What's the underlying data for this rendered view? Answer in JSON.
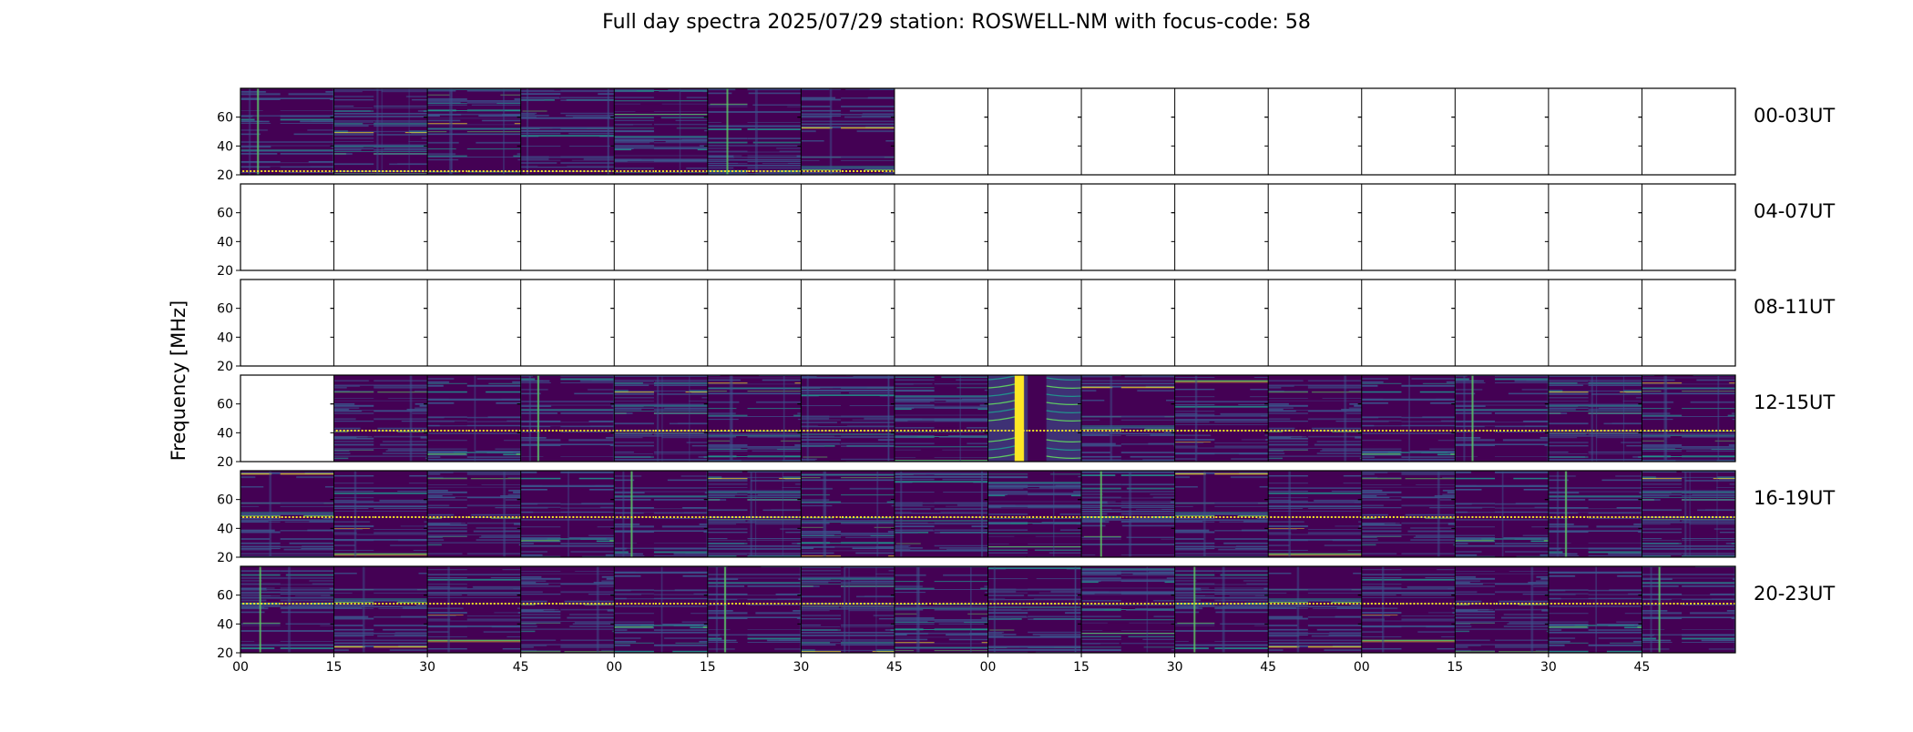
{
  "chart_data": {
    "type": "heatmap",
    "title": "Full day spectra 2025/07/29 station: ROSWELL-NM with focus-code: 58",
    "ylabel": "Frequency [MHz]",
    "ylim": [
      20,
      80
    ],
    "yticks": [
      20,
      40,
      60
    ],
    "xtick_labels": [
      "00",
      "15",
      "30",
      "45",
      "00",
      "15",
      "30",
      "45",
      "00",
      "15",
      "30",
      "45",
      "00",
      "15",
      "30",
      "45"
    ],
    "panels_per_row": 16,
    "minutes_per_panel": 15,
    "rows": [
      {
        "label": "00-03UT",
        "panels": [
          "spectrum",
          "spectrum",
          "spectrum",
          "spectrum",
          "spectrum",
          "spectrum",
          "spectrum",
          "empty",
          "empty",
          "empty",
          "empty",
          "empty",
          "empty",
          "empty",
          "empty",
          "empty"
        ]
      },
      {
        "label": "04-07UT",
        "panels": [
          "empty",
          "empty",
          "empty",
          "empty",
          "empty",
          "empty",
          "empty",
          "empty",
          "empty",
          "empty",
          "empty",
          "empty",
          "empty",
          "empty",
          "empty",
          "empty"
        ]
      },
      {
        "label": "08-11UT",
        "panels": [
          "empty",
          "empty",
          "empty",
          "empty",
          "empty",
          "empty",
          "empty",
          "empty",
          "empty",
          "empty",
          "empty",
          "empty",
          "empty",
          "empty",
          "empty",
          "empty"
        ]
      },
      {
        "label": "12-15UT",
        "panels": [
          "empty",
          "spectrum",
          "spectrum",
          "spectrum",
          "spectrum",
          "spectrum",
          "spectrum",
          "spectrum",
          "burst",
          "spectrum",
          "spectrum",
          "spectrum",
          "spectrum",
          "spectrum",
          "spectrum",
          "spectrum"
        ]
      },
      {
        "label": "16-19UT",
        "panels": [
          "spectrum",
          "spectrum",
          "spectrum",
          "spectrum",
          "spectrum",
          "spectrum",
          "spectrum",
          "spectrum",
          "spectrum",
          "spectrum",
          "spectrum",
          "spectrum",
          "spectrum",
          "spectrum",
          "spectrum",
          "spectrum"
        ]
      },
      {
        "label": "20-23UT",
        "panels": [
          "spectrum",
          "spectrum",
          "spectrum",
          "spectrum",
          "spectrum",
          "spectrum",
          "spectrum",
          "spectrum",
          "spectrum",
          "spectrum",
          "spectrum",
          "spectrum",
          "spectrum",
          "spectrum",
          "spectrum",
          "spectrum"
        ]
      }
    ],
    "colormap": [
      "#440154",
      "#3b528b",
      "#21918c",
      "#5ec962",
      "#fde725"
    ],
    "grid": false,
    "legend": "none"
  }
}
